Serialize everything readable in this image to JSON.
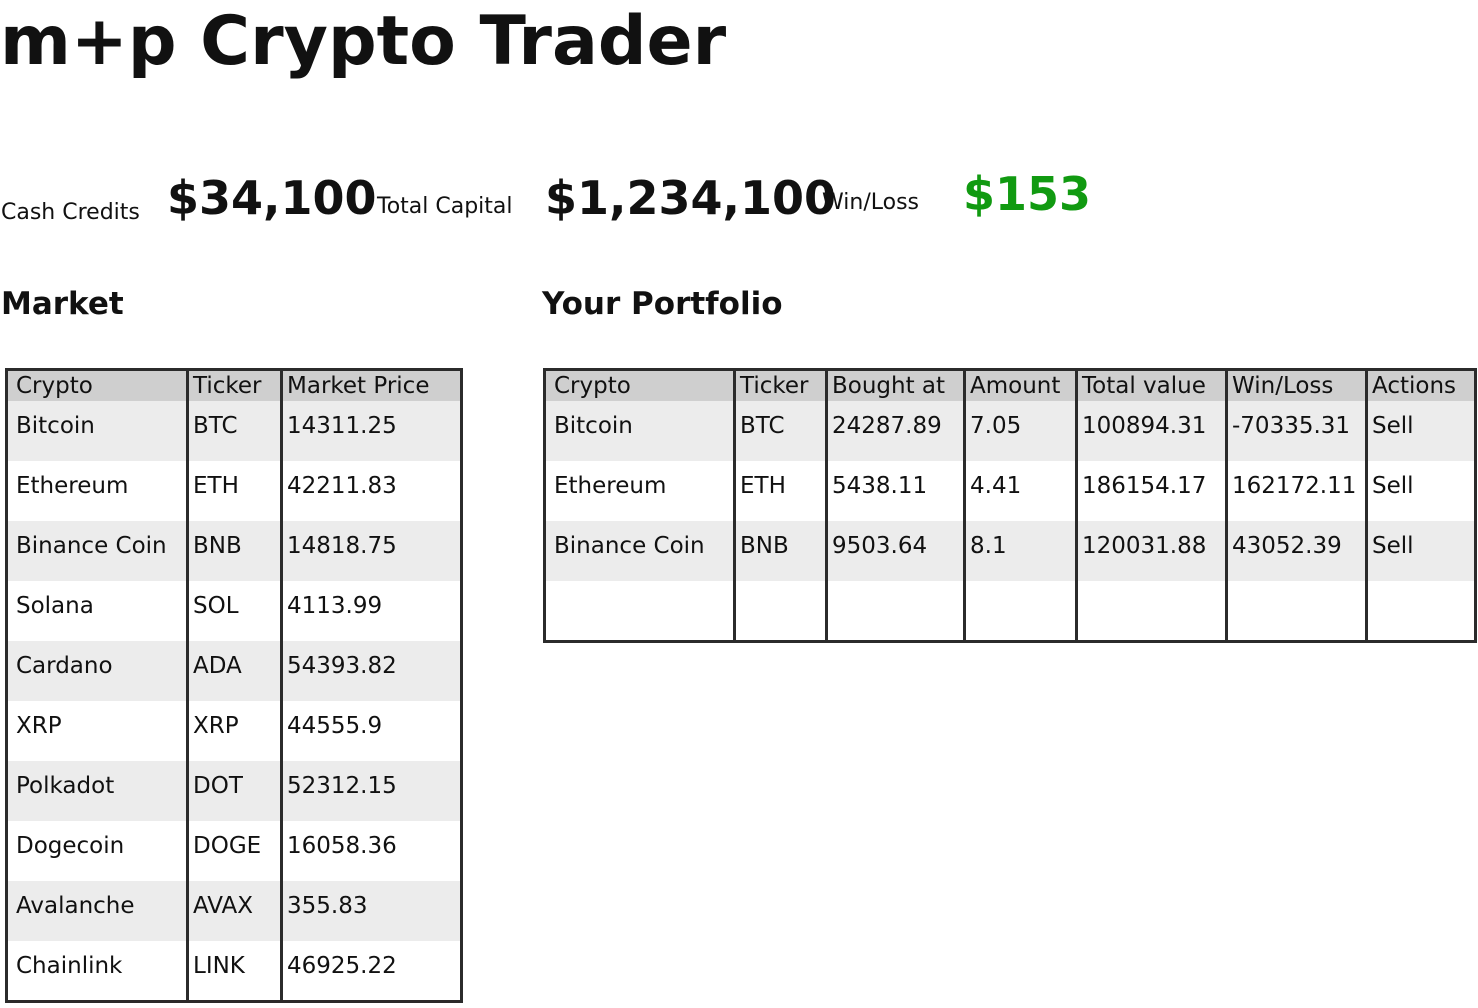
{
  "app": {
    "title": "m+p Crypto Trader"
  },
  "stats": {
    "cash_label": "Cash Credits",
    "cash_value": "$34,100",
    "capital_label": "Total Capital",
    "capital_value": "$1,234,100",
    "winloss_label": "Win/Loss",
    "winloss_value": "$153",
    "winloss_color": "#119a11"
  },
  "market": {
    "title": "Market",
    "columns": [
      "Crypto",
      "Ticker",
      "Market Price"
    ],
    "rows": [
      [
        "Bitcoin",
        "BTC",
        "14311.25"
      ],
      [
        "Ethereum",
        "ETH",
        "42211.83"
      ],
      [
        "Binance Coin",
        "BNB",
        "14818.75"
      ],
      [
        "Solana",
        "SOL",
        "4113.99"
      ],
      [
        "Cardano",
        "ADA",
        "54393.82"
      ],
      [
        "XRP",
        "XRP",
        "44555.9"
      ],
      [
        "Polkadot",
        "DOT",
        "52312.15"
      ],
      [
        "Dogecoin",
        "DOGE",
        "16058.36"
      ],
      [
        "Avalanche",
        "AVAX",
        "355.83"
      ],
      [
        "Chainlink",
        "LINK",
        "46925.22"
      ]
    ]
  },
  "portfolio": {
    "title": "Your Portfolio",
    "columns": [
      "Crypto",
      "Ticker",
      "Bought at",
      "Amount",
      "Total value",
      "Win/Loss",
      "Actions"
    ],
    "rows": [
      [
        "Bitcoin",
        "BTC",
        "24287.89",
        "7.05",
        "100894.31",
        "-70335.31",
        "Sell"
      ],
      [
        "Ethereum",
        "ETH",
        "5438.11",
        "4.41",
        "186154.17",
        "162172.11",
        "Sell"
      ],
      [
        "Binance Coin",
        "BNB",
        "9503.64",
        "8.1",
        "120031.88",
        "43052.39",
        "Sell"
      ]
    ]
  }
}
